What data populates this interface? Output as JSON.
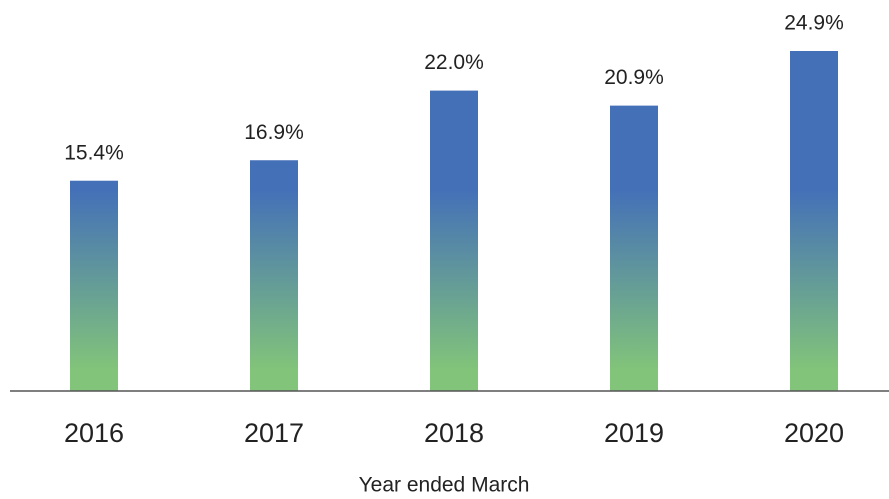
{
  "chart_data": {
    "type": "bar",
    "x_label": "Year ended March",
    "categories": [
      "2016",
      "2017",
      "2018",
      "2019",
      "2020"
    ],
    "values": [
      15.4,
      16.9,
      22.0,
      20.9,
      24.9
    ],
    "value_labels": [
      "15.4%",
      "16.9%",
      "22.0%",
      "20.9%",
      "24.9%"
    ],
    "color": [
      "#4470b8",
      "#82c47a"
    ]
  }
}
